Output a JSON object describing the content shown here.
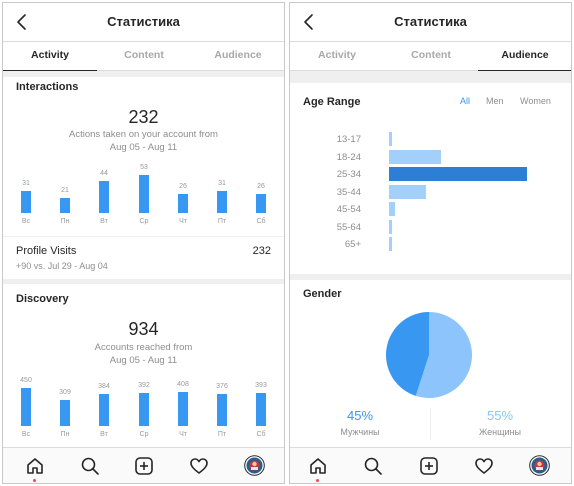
{
  "left_screen": {
    "header": {
      "title": "Статистика"
    },
    "tabs": [
      {
        "label": "Activity",
        "active": true
      },
      {
        "label": "Content",
        "active": false
      },
      {
        "label": "Audience",
        "active": false
      }
    ],
    "interactions": {
      "title": "Interactions",
      "total": "232",
      "subtitle_line1": "Actions taken on your account from",
      "subtitle_line2": "Aug 05 - Aug 11",
      "chart_data": {
        "type": "bar",
        "categories": [
          "Вс",
          "Пн",
          "Вт",
          "Ср",
          "Чт",
          "Пт",
          "Сб"
        ],
        "values": [
          31,
          21,
          44,
          53,
          26,
          31,
          26
        ],
        "ylim": [
          0,
          53
        ]
      },
      "profile_visits_label": "Profile Visits",
      "profile_visits_value": "232",
      "profile_visits_sub": "+90 vs. Jul 29 - Aug 04"
    },
    "discovery": {
      "title": "Discovery",
      "total": "934",
      "subtitle_line1": "Accounts reached from",
      "subtitle_line2": "Aug 05 - Aug 11",
      "chart_data": {
        "type": "bar",
        "categories": [
          "Вс",
          "Пн",
          "Вт",
          "Ср",
          "Чт",
          "Пт",
          "Сб"
        ],
        "values": [
          450,
          309,
          384,
          392,
          408,
          376,
          393
        ],
        "ylim": [
          0,
          450
        ]
      }
    }
  },
  "right_screen": {
    "header": {
      "title": "Статистика"
    },
    "tabs": [
      {
        "label": "Activity",
        "active": false
      },
      {
        "label": "Content",
        "active": false
      },
      {
        "label": "Audience",
        "active": true
      }
    ],
    "age_range": {
      "title": "Age Range",
      "filters": [
        {
          "label": "All",
          "active": true
        },
        {
          "label": "Men",
          "active": false
        },
        {
          "label": "Women",
          "active": false
        }
      ],
      "chart_data": {
        "type": "bar",
        "orientation": "horizontal",
        "categories": [
          "13-17",
          "18-24",
          "25-34",
          "35-44",
          "45-54",
          "55-64",
          "65+"
        ],
        "values": [
          2,
          38,
          100,
          27,
          4,
          2,
          1
        ],
        "highlight": "25-34"
      }
    },
    "gender": {
      "title": "Gender",
      "chart_data": {
        "type": "pie",
        "categories": [
          "Мужчины",
          "Женщины"
        ],
        "values": [
          45,
          55
        ]
      },
      "male_pct": "45%",
      "male_label": "Мужчины",
      "female_pct": "55%",
      "female_label": "Женщины"
    }
  },
  "colors": {
    "accent": "#3897f0",
    "accent_dark": "#2d7fd6",
    "accent_light": "#a3d0fa",
    "pie_female": "#8cc4fb",
    "notification_dot": "#ed4956"
  },
  "nav_icons": [
    "home-icon",
    "search-icon",
    "add-post-icon",
    "heart-icon",
    "profile-avatar"
  ]
}
